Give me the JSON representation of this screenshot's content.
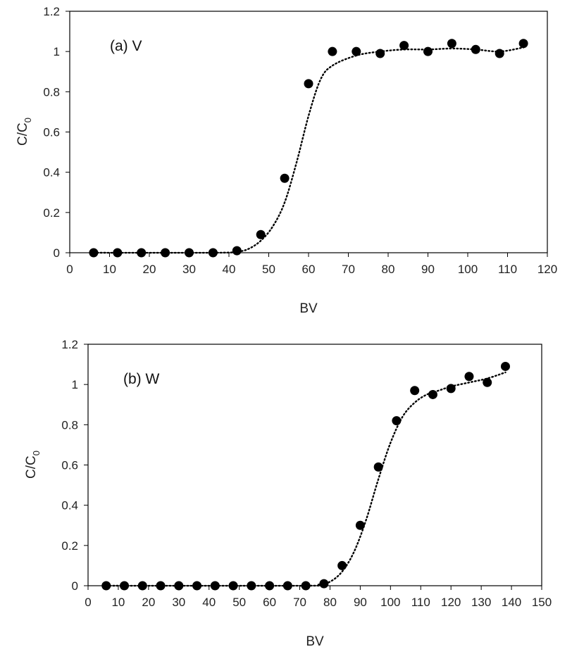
{
  "chart_data": [
    {
      "type": "scatter",
      "panel_label": "(a) V",
      "xlabel": "BV",
      "ylabel": "C/C0",
      "ylabel_main": "C/C",
      "ylabel_sub": "0",
      "xlim": [
        0,
        120
      ],
      "ylim": [
        0,
        1.2
      ],
      "xticks": [
        0,
        10,
        20,
        30,
        40,
        50,
        60,
        70,
        80,
        90,
        100,
        110,
        120
      ],
      "yticks": [
        0,
        0.2,
        0.4,
        0.6,
        0.8,
        1,
        1.2
      ],
      "ytick_labels": [
        "0",
        "0.2",
        "0.4",
        "0.6",
        "0.8",
        "1",
        "1.2"
      ],
      "grid": false,
      "marker_color": "#000000",
      "points": {
        "x": [
          6,
          12,
          18,
          24,
          30,
          36,
          42,
          48,
          54,
          60,
          66,
          72,
          78,
          84,
          90,
          96,
          102,
          108,
          114
        ],
        "y": [
          0,
          0,
          0,
          0,
          0,
          0,
          0.01,
          0.09,
          0.37,
          0.84,
          1.0,
          1.0,
          0.99,
          1.03,
          1.0,
          1.04,
          1.01,
          0.99,
          1.04
        ]
      },
      "fit_curve": {
        "style": "dotted",
        "x": [
          6,
          36,
          42,
          45,
          48,
          51,
          54,
          57,
          60,
          63,
          66,
          72,
          78,
          84,
          90,
          96,
          102,
          108,
          114
        ],
        "y": [
          0,
          0,
          0.005,
          0.02,
          0.06,
          0.13,
          0.25,
          0.45,
          0.68,
          0.86,
          0.93,
          0.98,
          1.0,
          1.01,
          1.01,
          1.015,
          1.01,
          1.0,
          1.02
        ]
      }
    },
    {
      "type": "scatter",
      "panel_label": "(b) W",
      "xlabel": "BV",
      "ylabel": "C/C0",
      "ylabel_main": "C/C",
      "ylabel_sub": "0",
      "xlim": [
        0,
        150
      ],
      "ylim": [
        0,
        1.2
      ],
      "xticks": [
        0,
        10,
        20,
        30,
        40,
        50,
        60,
        70,
        80,
        90,
        100,
        110,
        120,
        130,
        140,
        150
      ],
      "yticks": [
        0,
        0.2,
        0.4,
        0.6,
        0.8,
        1,
        1.2
      ],
      "ytick_labels": [
        "0",
        "0.2",
        "0.4",
        "0.6",
        "0.8",
        "1",
        "1.2"
      ],
      "grid": false,
      "marker_color": "#000000",
      "points": {
        "x": [
          6,
          12,
          18,
          24,
          30,
          36,
          42,
          48,
          54,
          60,
          66,
          72,
          78,
          84,
          90,
          96,
          102,
          108,
          114,
          120,
          126,
          132,
          138
        ],
        "y": [
          0,
          0,
          0,
          0,
          0,
          0,
          0,
          0,
          0,
          0,
          0,
          0,
          0.01,
          0.1,
          0.3,
          0.59,
          0.82,
          0.97,
          0.95,
          0.98,
          1.04,
          1.01,
          1.09
        ]
      },
      "fit_curve": {
        "style": "dotted",
        "x": [
          6,
          72,
          76,
          80,
          84,
          88,
          92,
          96,
          100,
          104,
          108,
          112,
          116,
          120,
          126,
          132,
          138
        ],
        "y": [
          0,
          0,
          0.005,
          0.02,
          0.07,
          0.17,
          0.33,
          0.53,
          0.71,
          0.84,
          0.91,
          0.95,
          0.97,
          0.99,
          1.01,
          1.03,
          1.06
        ]
      }
    }
  ]
}
